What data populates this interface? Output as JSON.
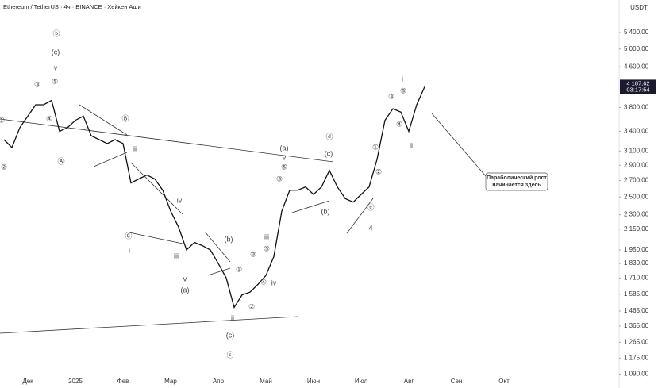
{
  "chart_data": {
    "type": "line",
    "title": "Ethereum / TetherUS · 4ч · BINANCE · Хейкен Аши",
    "color": "#111111",
    "log_scale": true,
    "grid": false,
    "y_axis_label": "USDT",
    "price_label": "4 187,62",
    "timer_label": "03:17:54",
    "categories": [
      null,
      null,
      null,
      "Дек",
      null,
      null,
      null,
      null,
      null,
      "2025",
      null,
      null,
      null,
      null,
      null,
      "Фев",
      null,
      null,
      null,
      null,
      null,
      "Мар",
      null,
      null,
      null,
      null,
      null,
      "Апр",
      null,
      null,
      null,
      null,
      null,
      "Май",
      null,
      null,
      null,
      null,
      null,
      "Июн",
      null,
      null,
      null,
      null,
      null,
      "Июл",
      null,
      null,
      null,
      null,
      null,
      "Авг",
      null,
      null,
      null,
      null,
      null,
      "Сен",
      null,
      null,
      null,
      null,
      null,
      "Окт",
      null,
      null,
      null,
      null,
      null,
      null,
      null,
      null,
      null,
      null,
      null,
      null,
      null,
      null
    ],
    "values": [
      3270,
      3150,
      3460,
      3650,
      3850,
      3850,
      3930,
      3400,
      3460,
      3580,
      3650,
      3330,
      3270,
      3210,
      3270,
      3210,
      2670,
      2720,
      2770,
      2720,
      2580,
      2340,
      2170,
      1950,
      2020,
      1990,
      1950,
      1830,
      1710,
      1490,
      1580,
      1600,
      1660,
      1730,
      1890,
      2340,
      2580,
      2580,
      2620,
      2530,
      2620,
      2830,
      2620,
      2480,
      2440,
      2530,
      2620,
      2980,
      3580,
      3780,
      3720,
      3400,
      3850,
      4188,
      null,
      null,
      null,
      null,
      null,
      null,
      null,
      null,
      null,
      null,
      null,
      null,
      null,
      null,
      null,
      null,
      null,
      null,
      null,
      null,
      null,
      null,
      null,
      null
    ],
    "ylim": [
      1056,
      6290
    ],
    "yticks": [
      {
        "value": 5400,
        "label": "5 400,00"
      },
      {
        "value": 5000,
        "label": "5 000,00"
      },
      {
        "value": 4600,
        "label": "4 600,00"
      },
      {
        "value": 3800,
        "label": "3 800,00"
      },
      {
        "value": 3400,
        "label": "3 400,00"
      },
      {
        "value": 3100,
        "label": "3 100,00"
      },
      {
        "value": 2900,
        "label": "2 900,00"
      },
      {
        "value": 2700,
        "label": "2 700,00"
      },
      {
        "value": 2500,
        "label": "2 500,00"
      },
      {
        "value": 2300,
        "label": "2 300,00"
      },
      {
        "value": 2150,
        "label": "2 150,00"
      },
      {
        "value": 1950,
        "label": "1 950,00"
      },
      {
        "value": 1830,
        "label": "1 830,00"
      },
      {
        "value": 1710,
        "label": "1 710,00"
      },
      {
        "value": 1585,
        "label": "1 585,00"
      },
      {
        "value": 1465,
        "label": "1 465,00"
      },
      {
        "value": 1365,
        "label": "1 365,00"
      },
      {
        "value": 1265,
        "label": "1 265,00"
      },
      {
        "value": 1175,
        "label": "1 175,00"
      },
      {
        "value": 1090,
        "label": "1 090,00"
      }
    ],
    "annotations": [
      "ⓑ",
      "(c)",
      "v",
      "③",
      "⑤",
      "④",
      "①",
      "②",
      "Ⓐ",
      "Ⓑ",
      "ii",
      "Ⓒ",
      "i",
      "iv",
      "iii",
      "v",
      "(a)",
      "(b)",
      "①",
      "ii",
      "(c)",
      "ⓒ",
      "②",
      "③",
      "④",
      "⑤",
      "iii",
      "iv",
      "(a)",
      "v",
      "⑤",
      "③",
      "ⓓ",
      "(c)",
      "(b)",
      "ⓔ",
      "4",
      "①",
      "②",
      "③",
      "i",
      "⑤",
      "④",
      "ii"
    ],
    "callout": [
      "Параболический рост",
      "начинается здесь"
    ]
  }
}
